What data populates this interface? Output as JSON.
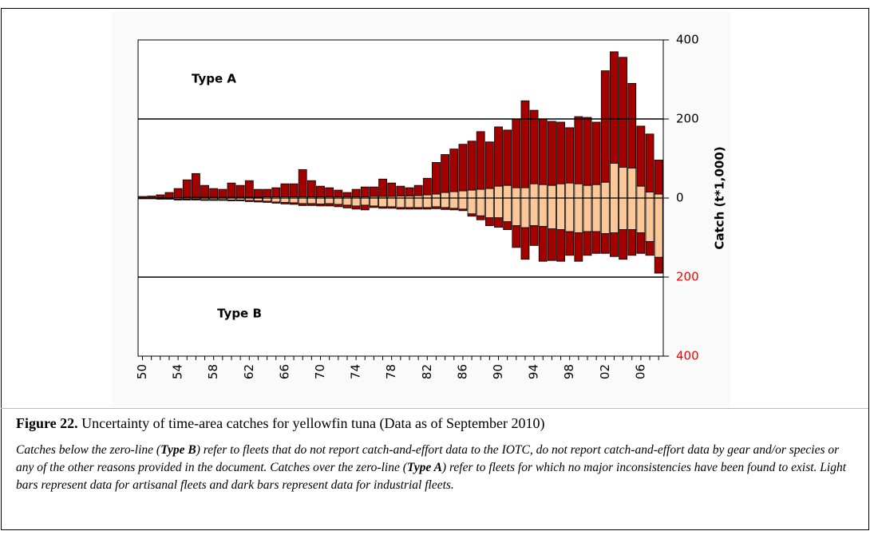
{
  "chart_data": {
    "type": "bar",
    "y_label": "Catch (t*1,000)",
    "annotations": [
      "Type A",
      "Type B"
    ],
    "categories": [
      "50",
      null,
      null,
      null,
      "54",
      null,
      null,
      null,
      "58",
      null,
      null,
      null,
      "62",
      null,
      null,
      null,
      "66",
      null,
      null,
      null,
      "70",
      null,
      null,
      null,
      "74",
      null,
      null,
      null,
      "78",
      null,
      null,
      null,
      "82",
      null,
      null,
      null,
      "86",
      null,
      null,
      null,
      "90",
      null,
      null,
      null,
      "94",
      null,
      null,
      null,
      "98",
      null,
      null,
      null,
      "02",
      null,
      null,
      null,
      "06",
      null,
      null
    ],
    "series": [
      {
        "color": "#fcc89a",
        "values": [
          0,
          0,
          1,
          1,
          1,
          2,
          2,
          2,
          2,
          2,
          2,
          2,
          2,
          2,
          3,
          3,
          3,
          3,
          3,
          3,
          3,
          3,
          3,
          3,
          3,
          3,
          4,
          4,
          4,
          5,
          5,
          6,
          8,
          10,
          14,
          16,
          18,
          20,
          22,
          24,
          30,
          32,
          26,
          26,
          36,
          34,
          32,
          36,
          38,
          36,
          32,
          34,
          40,
          88,
          78,
          76,
          30,
          15,
          10
        ]
      },
      {
        "color": "#a30000",
        "values": [
          4,
          5,
          7,
          13,
          23,
          44,
          60,
          30,
          22,
          20,
          36,
          30,
          42,
          20,
          19,
          23,
          33,
          33,
          69,
          41,
          27,
          23,
          17,
          11,
          19,
          25,
          24,
          44,
          34,
          25,
          21,
          26,
          42,
          80,
          96,
          108,
          118,
          124,
          146,
          118,
          150,
          140,
          174,
          220,
          186,
          166,
          162,
          156,
          140,
          170,
          172,
          158,
          282,
          282,
          278,
          214,
          152,
          147,
          86
        ]
      },
      {
        "color": "#fcc89a",
        "values": [
          -1,
          -1,
          -2,
          -2,
          -3,
          -3,
          -3,
          -4,
          -4,
          -4,
          -5,
          -5,
          -6,
          -7,
          -8,
          -10,
          -11,
          -12,
          -14,
          -14,
          -15,
          -14,
          -16,
          -18,
          -20,
          -18,
          -20,
          -22,
          -22,
          -24,
          -24,
          -24,
          -24,
          -22,
          -24,
          -26,
          -28,
          -40,
          -45,
          -50,
          -50,
          -60,
          -70,
          -75,
          -70,
          -72,
          -78,
          -80,
          -85,
          -88,
          -85,
          -85,
          -90,
          -88,
          -80,
          -80,
          -88,
          -110,
          -150
        ]
      },
      {
        "color": "#a30000",
        "values": [
          -1,
          -1,
          -1,
          -1,
          -2,
          -2,
          -2,
          -2,
          -2,
          -2,
          -2,
          -2,
          -3,
          -3,
          -3,
          -3,
          -4,
          -4,
          -5,
          -5,
          -5,
          -6,
          -6,
          -7,
          -8,
          -12,
          -4,
          -4,
          -4,
          -4,
          -4,
          -4,
          -4,
          -5,
          -5,
          -4,
          -4,
          -6,
          -10,
          -20,
          -24,
          -20,
          -55,
          -80,
          -50,
          -88,
          -80,
          -80,
          -60,
          -72,
          -60,
          -55,
          -50,
          -60,
          -75,
          -65,
          -52,
          -35,
          -40
        ]
      }
    ],
    "ylim": [
      -400,
      400
    ],
    "yticks": [
      {
        "value": -400,
        "label": "400"
      },
      {
        "value": -200,
        "label": "200"
      },
      0,
      200,
      400
    ],
    "negative_tick_color": "#ff0000",
    "hlines": [
      200,
      -200
    ]
  },
  "caption": {
    "label": "Figure 22.",
    "text": "Uncertainty of time-area catches for yellowfin tuna (Data as of September 2010)"
  },
  "note": [
    {
      "text": "Catches below the zero-line (",
      "bold": false
    },
    {
      "text": "Type B",
      "bold": true
    },
    {
      "text": ") refer to fleets that do not report catch-and-effort data to the IOTC, do not report catch-and-effort data by gear and/or species or any of the other reasons provided in the document. Catches over the zero-line (",
      "bold": false
    },
    {
      "text": "Type A",
      "bold": true
    },
    {
      "text": ") refer to fleets for which no major inconsistencies have been found to exist. Light bars represent data for artisanal fleets and dark bars represent data for industrial fleets.",
      "bold": false
    }
  ]
}
